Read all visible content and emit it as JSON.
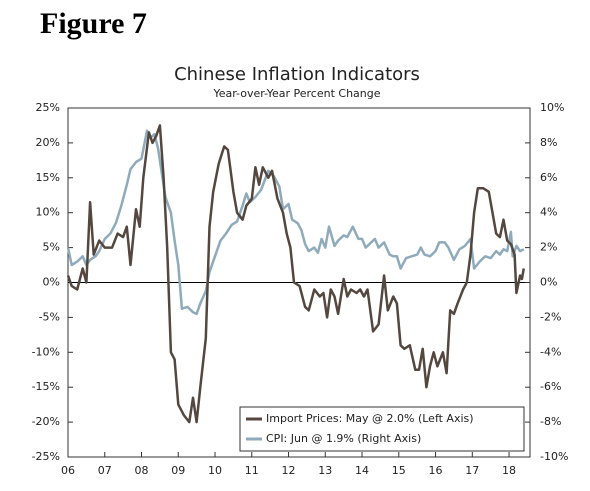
{
  "figure_label": "Figure 7",
  "chart_data": {
    "type": "line",
    "title": "Chinese Inflation Indicators",
    "subtitle": "Year-over-Year Percent Change",
    "xlim": [
      6,
      18.57
    ],
    "xticks": [
      {
        "value": 6,
        "label": "06"
      },
      {
        "value": 7,
        "label": "07"
      },
      {
        "value": 8,
        "label": "08"
      },
      {
        "value": 9,
        "label": "09"
      },
      {
        "value": 10,
        "label": "10"
      },
      {
        "value": 11,
        "label": "11"
      },
      {
        "value": 12,
        "label": "12"
      },
      {
        "value": 13,
        "label": "13"
      },
      {
        "value": 14,
        "label": "14"
      },
      {
        "value": 15,
        "label": "15"
      },
      {
        "value": 16,
        "label": "16"
      },
      {
        "value": 17,
        "label": "17"
      },
      {
        "value": 18,
        "label": "18"
      }
    ],
    "ylim": [
      -25,
      25
    ],
    "yticks": [
      {
        "value": -25,
        "label": "-25%"
      },
      {
        "value": -20,
        "label": "-20%"
      },
      {
        "value": -15,
        "label": "-15%"
      },
      {
        "value": -10,
        "label": "-10%"
      },
      {
        "value": -5,
        "label": "-5%"
      },
      {
        "value": 0,
        "label": "0%"
      },
      {
        "value": 5,
        "label": "5%"
      },
      {
        "value": 10,
        "label": "10%"
      },
      {
        "value": 15,
        "label": "15%"
      },
      {
        "value": 20,
        "label": "20%"
      },
      {
        "value": 25,
        "label": "25%"
      }
    ],
    "y2lim": [
      -10,
      10
    ],
    "y2ticks": [
      {
        "value": -10,
        "label": "-10%"
      },
      {
        "value": -8,
        "label": "-8%"
      },
      {
        "value": -6,
        "label": "-6%"
      },
      {
        "value": -4,
        "label": "-4%"
      },
      {
        "value": -2,
        "label": "-2%"
      },
      {
        "value": 0,
        "label": "0%"
      },
      {
        "value": 2,
        "label": "2%"
      },
      {
        "value": 4,
        "label": "4%"
      },
      {
        "value": 6,
        "label": "6%"
      },
      {
        "value": 8,
        "label": "8%"
      },
      {
        "value": 10,
        "label": "10%"
      }
    ],
    "grid": false,
    "legend": "lower right",
    "series": [
      {
        "name": "Import Prices: May @ 2.0% (Left Axis)",
        "color": "#54473f",
        "axis": "y",
        "x": [
          6.0,
          6.1,
          6.25,
          6.4,
          6.5,
          6.6,
          6.7,
          6.85,
          7.0,
          7.2,
          7.35,
          7.5,
          7.6,
          7.7,
          7.85,
          7.95,
          8.05,
          8.2,
          8.3,
          8.4,
          8.5,
          8.6,
          8.7,
          8.8,
          8.9,
          9.0,
          9.15,
          9.3,
          9.4,
          9.5,
          9.6,
          9.75,
          9.85,
          9.95,
          10.1,
          10.25,
          10.35,
          10.5,
          10.6,
          10.75,
          10.85,
          11.0,
          11.1,
          11.2,
          11.3,
          11.45,
          11.55,
          11.7,
          11.85,
          11.95,
          12.05,
          12.15,
          12.3,
          12.45,
          12.55,
          12.7,
          12.85,
          12.95,
          13.05,
          13.15,
          13.25,
          13.35,
          13.5,
          13.6,
          13.7,
          13.85,
          13.95,
          14.05,
          14.15,
          14.3,
          14.45,
          14.6,
          14.7,
          14.85,
          14.95,
          15.05,
          15.15,
          15.3,
          15.45,
          15.55,
          15.65,
          15.75,
          15.85,
          15.95,
          16.05,
          16.2,
          16.3,
          16.4,
          16.5,
          16.6,
          16.75,
          16.85,
          16.95,
          17.05,
          17.15,
          17.3,
          17.45,
          17.55,
          17.65,
          17.75,
          17.85,
          17.95,
          18.05,
          18.15,
          18.2,
          18.3,
          18.35,
          18.4
        ],
        "values": [
          1,
          -0.5,
          -1,
          2,
          0,
          11.5,
          4,
          6,
          5,
          5,
          7,
          6.5,
          8,
          2.5,
          10.5,
          8,
          15,
          21.5,
          20,
          21,
          22.5,
          15,
          5,
          -10,
          -11,
          -17.5,
          -19,
          -20,
          -16.5,
          -20,
          -15,
          -8,
          8,
          13,
          17,
          19.5,
          19,
          13,
          10,
          9,
          11,
          12,
          16.5,
          14,
          16.5,
          15,
          16,
          12,
          10,
          7,
          5,
          0,
          -0.5,
          -3.5,
          -4,
          -1,
          -2,
          -1.5,
          -5,
          -1,
          -2,
          -4.5,
          0.5,
          -2,
          -1,
          -1.5,
          -1,
          -2,
          -1,
          -7,
          -6,
          1,
          -4,
          -2,
          -3,
          -9,
          -9.5,
          -9,
          -12.5,
          -12.5,
          -9.5,
          -15,
          -12,
          -10,
          -12,
          -10,
          -13,
          -4,
          -4.5,
          -3,
          -1,
          0,
          4,
          10,
          13.5,
          13.5,
          13,
          10,
          7,
          6.5,
          9,
          6,
          5.5,
          4,
          -1.5,
          1,
          0.5,
          2
        ]
      },
      {
        "name": "CPI: Jun @ 1.9% (Right Axis)",
        "color": "#8eaabb",
        "axis": "y2",
        "x": [
          6.0,
          6.1,
          6.25,
          6.4,
          6.5,
          6.6,
          6.75,
          6.85,
          7.0,
          7.15,
          7.3,
          7.45,
          7.6,
          7.7,
          7.85,
          8.0,
          8.15,
          8.25,
          8.35,
          8.45,
          8.55,
          8.65,
          8.8,
          8.9,
          9.0,
          9.1,
          9.25,
          9.4,
          9.5,
          9.6,
          9.75,
          9.85,
          10.0,
          10.15,
          10.3,
          10.45,
          10.6,
          10.75,
          10.85,
          10.95,
          11.1,
          11.25,
          11.45,
          11.6,
          11.75,
          11.85,
          12.0,
          12.1,
          12.25,
          12.35,
          12.45,
          12.55,
          12.7,
          12.8,
          12.9,
          13.0,
          13.1,
          13.25,
          13.35,
          13.5,
          13.6,
          13.75,
          13.9,
          14.0,
          14.1,
          14.25,
          14.35,
          14.45,
          14.6,
          14.75,
          14.85,
          14.95,
          15.05,
          15.2,
          15.35,
          15.5,
          15.6,
          15.7,
          15.85,
          16.0,
          16.1,
          16.25,
          16.35,
          16.5,
          16.65,
          16.8,
          16.95,
          17.05,
          17.2,
          17.35,
          17.5,
          17.65,
          17.75,
          17.85,
          17.95,
          18.05,
          18.1,
          18.2,
          18.3,
          18.4
        ],
        "values": [
          2,
          1,
          1.2,
          1.5,
          1,
          1.3,
          1.5,
          1.8,
          2.5,
          2.8,
          3.4,
          4.4,
          5.6,
          6.5,
          6.9,
          7.1,
          8.7,
          8.3,
          8.5,
          7.7,
          6.3,
          4.9,
          4,
          2.4,
          1,
          -1.5,
          -1.4,
          -1.7,
          -1.8,
          -1.2,
          -0.5,
          0.6,
          1.5,
          2.4,
          2.8,
          3.3,
          3.5,
          4.4,
          5.1,
          4.6,
          4.9,
          5.3,
          6.4,
          6.1,
          5.5,
          4.2,
          4.5,
          3.6,
          3.4,
          3,
          2.2,
          1.8,
          2,
          1.7,
          2.5,
          2,
          3.2,
          2.1,
          2.4,
          2.7,
          2.6,
          3.2,
          2.5,
          2.5,
          2,
          2.3,
          2.5,
          2,
          2.3,
          1.6,
          1.5,
          1.5,
          0.8,
          1.4,
          1.5,
          1.6,
          2,
          1.6,
          1.5,
          1.8,
          2.3,
          2.3,
          2,
          1.3,
          1.9,
          2.1,
          2.5,
          0.8,
          1.2,
          1.5,
          1.4,
          1.8,
          1.6,
          1.9,
          1.8,
          2.9,
          1.5,
          2.1,
          1.8,
          1.9
        ]
      }
    ]
  }
}
